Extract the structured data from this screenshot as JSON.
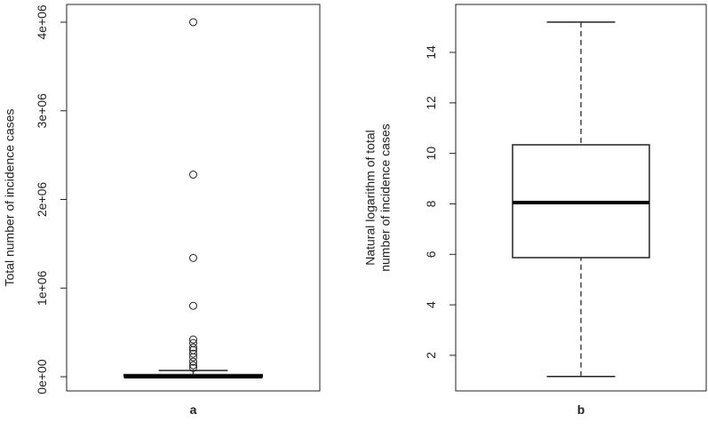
{
  "chart_data": [
    {
      "type": "boxplot",
      "x_label": "a",
      "y_label": [
        "Total number of incidence cases"
      ],
      "box": {
        "min": 0,
        "q1": 0,
        "median": 0,
        "q3": 25000,
        "max": 70000
      },
      "outliers": [
        4000000,
        2280000,
        1340000,
        800000,
        420000,
        380000,
        330000,
        300000,
        260000,
        220000,
        170000,
        130000,
        100000
      ],
      "ylim": [
        -160000,
        4200000
      ],
      "yticks": [
        {
          "value": 0,
          "label": "0e+00"
        },
        {
          "value": 1000000,
          "label": "1e+06"
        },
        {
          "value": 2000000,
          "label": "2e+06"
        },
        {
          "value": 3000000,
          "label": "3e+06"
        },
        {
          "value": 4000000,
          "label": "4e+06"
        }
      ]
    },
    {
      "type": "boxplot",
      "x_label": "b",
      "y_label": [
        "Natural logarithm of total",
        "number of incidence cases"
      ],
      "box": {
        "min": 1.16,
        "q1": 5.87,
        "median": 8.05,
        "q3": 10.34,
        "max": 15.2
      },
      "outliers": [],
      "ylim": [
        0.59,
        15.9
      ],
      "yticks": [
        2,
        4,
        6,
        8,
        10,
        12,
        14
      ]
    }
  ]
}
